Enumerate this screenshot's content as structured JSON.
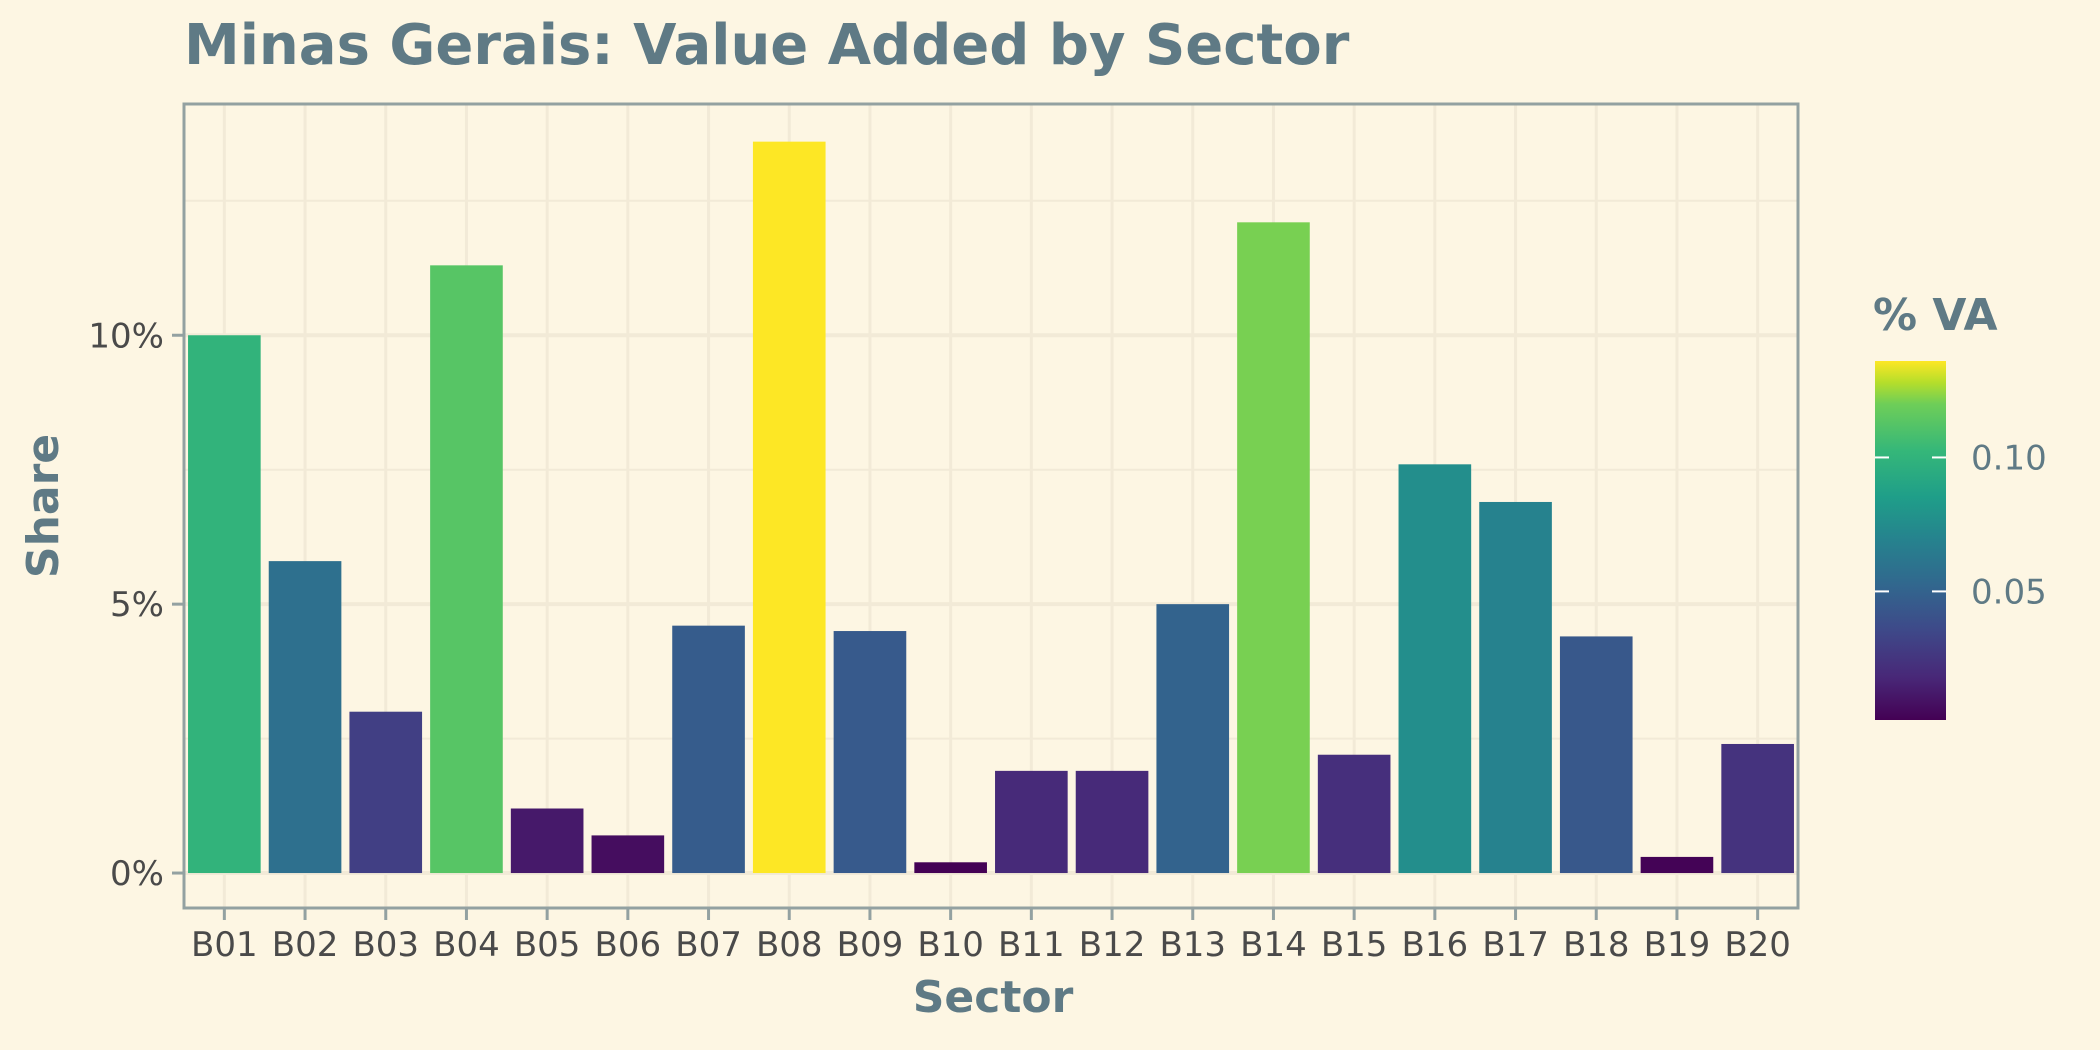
{
  "chart_data": {
    "type": "bar",
    "title": "Minas Gerais: Value Added by Sector",
    "xlabel": "Sector",
    "ylabel": "Share",
    "categories": [
      "B01",
      "B02",
      "B03",
      "B04",
      "B05",
      "B06",
      "B07",
      "B08",
      "B09",
      "B10",
      "B11",
      "B12",
      "B13",
      "B14",
      "B15",
      "B16",
      "B17",
      "B18",
      "B19",
      "B20"
    ],
    "values": [
      0.1,
      0.058,
      0.03,
      0.113,
      0.012,
      0.007,
      0.046,
      0.136,
      0.045,
      0.002,
      0.019,
      0.019,
      0.05,
      0.121,
      0.022,
      0.076,
      0.069,
      0.044,
      0.003,
      0.024
    ],
    "ylim": [
      -0.0065,
      0.143
    ],
    "yticks": [
      0,
      0.05,
      0.1
    ],
    "yticklabels": [
      "0%",
      "5%",
      "10%"
    ],
    "grid": true,
    "legend": {
      "title": "% VA",
      "position": "right",
      "type": "colorbar",
      "range": [
        0.002,
        0.136
      ],
      "ticks": [
        0.05,
        0.1
      ],
      "ticklabels": [
        "0.05",
        "0.10"
      ],
      "colormap": "viridis"
    },
    "colors": {
      "background": "#fdf6e3",
      "grid": "#f2ead7",
      "axis": "#93a1a1"
    }
  }
}
